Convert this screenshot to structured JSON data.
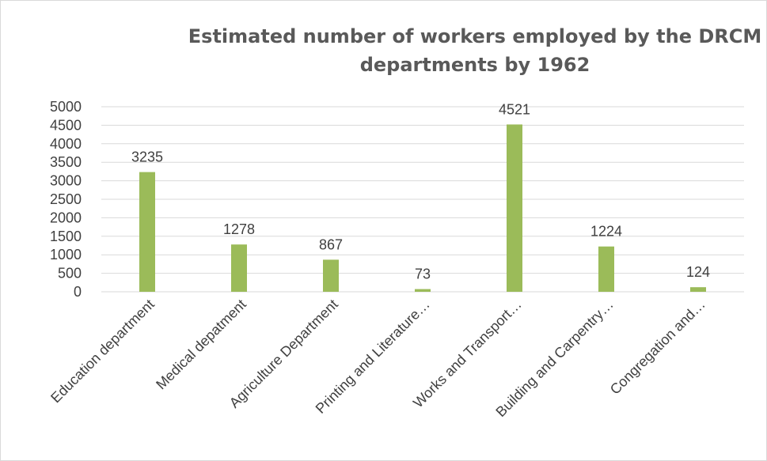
{
  "chart_data": {
    "type": "bar",
    "title": "Estimated number of workers employed by the DRCM departments by 1962",
    "categories": [
      "Education department",
      "Medical depatment",
      "Agriculture Department",
      "Printing and Literature…",
      "Works and Transport…",
      "Building and Carpentry…",
      "Congregation and…"
    ],
    "series": [
      {
        "values": [
          3235,
          1278,
          867,
          73,
          4521,
          1224,
          124
        ]
      }
    ],
    "data_labels": [
      "3235",
      "1278",
      "867",
      "73",
      "4521",
      "1224",
      "124"
    ],
    "y_tick_labels": [
      "0",
      "500",
      "1000",
      "1500",
      "2000",
      "2500",
      "3000",
      "3500",
      "4000",
      "4500",
      "5000"
    ],
    "ylim": [
      0,
      5000
    ],
    "xlabel": "",
    "ylabel": "",
    "grid": true,
    "legend": "none",
    "colors": {
      "bar": "#9bbb59",
      "grid": "#d9d9d9",
      "text": "#404040",
      "title": "#595959"
    }
  }
}
